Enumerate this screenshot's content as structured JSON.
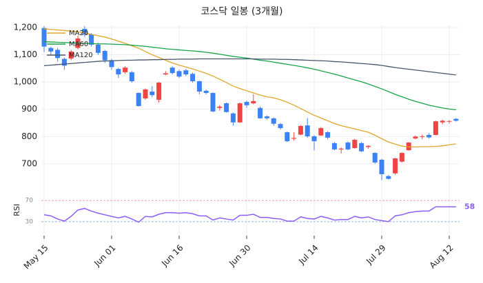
{
  "chart_data": [
    {
      "type": "candlestick",
      "title": "코스닥 일봉 (3개월)",
      "categories": [
        "May 15",
        null,
        null,
        null,
        null,
        null,
        null,
        null,
        null,
        null,
        "Jun 01",
        null,
        null,
        null,
        null,
        null,
        null,
        null,
        null,
        null,
        "Jun 16",
        null,
        null,
        null,
        null,
        null,
        null,
        null,
        null,
        null,
        "Jun 30",
        null,
        null,
        null,
        null,
        null,
        null,
        null,
        null,
        null,
        "Jul 14",
        null,
        null,
        null,
        null,
        null,
        null,
        null,
        null,
        null,
        "Jul 29",
        null,
        null,
        null,
        null,
        null,
        null,
        null,
        null,
        null,
        "Aug 12",
        null
      ],
      "open": [
        1198,
        1125,
        1118,
        1085,
        1086,
        1125,
        1195,
        1175,
        1137,
        1114,
        1080,
        1048,
        1036,
        1036,
        960,
        940,
        965,
        935,
        1028,
        1053,
        1040,
        1043,
        1030,
        1003,
        968,
        960,
        905,
        922,
        885,
        852,
        927,
        922,
        905,
        874,
        867,
        846,
        816,
        792,
        807,
        841,
        801,
        804,
        816,
        776,
        753,
        778,
        758,
        776,
        762,
        740,
        715,
        655,
        665,
        708,
        750,
        793,
        800,
        806,
        806,
        852,
        855,
        865
      ],
      "high": [
        1205,
        1130,
        1125,
        1090,
        1118,
        1170,
        1205,
        1180,
        1145,
        1118,
        1085,
        1052,
        1058,
        1040,
        962,
        976,
        985,
        1000,
        1040,
        1058,
        1045,
        1048,
        1035,
        1005,
        972,
        962,
        915,
        925,
        888,
        925,
        932,
        955,
        910,
        878,
        870,
        850,
        818,
        815,
        842,
        868,
        805,
        835,
        820,
        780,
        760,
        782,
        792,
        780,
        768,
        742,
        718,
        660,
        722,
        742,
        780,
        804,
        808,
        812,
        858,
        862,
        860,
        868
      ],
      "low": [
        1110,
        1100,
        1075,
        1045,
        1080,
        1120,
        1165,
        1130,
        1100,
        1070,
        1045,
        1015,
        1030,
        998,
        910,
        935,
        945,
        925,
        1025,
        1028,
        1015,
        1022,
        998,
        955,
        955,
        890,
        895,
        888,
        840,
        850,
        905,
        918,
        865,
        862,
        840,
        825,
        780,
        785,
        805,
        795,
        750,
        802,
        790,
        750,
        738,
        750,
        755,
        743,
        755,
        700,
        640,
        642,
        660,
        705,
        748,
        790,
        790,
        793,
        804,
        845,
        848,
        855
      ],
      "close": [
        1130,
        1112,
        1088,
        1060,
        1112,
        1160,
        1175,
        1137,
        1107,
        1080,
        1055,
        1028,
        1053,
        1003,
        912,
        973,
        952,
        998,
        1032,
        1033,
        1020,
        1028,
        1003,
        965,
        960,
        892,
        910,
        890,
        852,
        922,
        915,
        930,
        867,
        867,
        847,
        831,
        783,
        795,
        839,
        801,
        783,
        831,
        796,
        753,
        756,
        753,
        788,
        746,
        766,
        705,
        662,
        645,
        720,
        740,
        778,
        800,
        801,
        797,
        856,
        858,
        857,
        858
      ],
      "up_color": "#ef4444",
      "down_color": "#3b82f6",
      "series": [
        {
          "name": "MA20",
          "color": "#e0a526",
          "values": [
            1195,
            1193,
            1191,
            1189,
            1187,
            1184,
            1180,
            1175,
            1170,
            1165,
            1158,
            1150,
            1142,
            1133,
            1124,
            1112,
            1100,
            1090,
            1080,
            1070,
            1062,
            1055,
            1048,
            1040,
            1032,
            1022,
            1010,
            998,
            985,
            976,
            968,
            960,
            952,
            946,
            942,
            935,
            926,
            915,
            903,
            890,
            878,
            868,
            858,
            848,
            840,
            834,
            828,
            822,
            816,
            805,
            792,
            780,
            772,
            765,
            762,
            762,
            763,
            763,
            764,
            766,
            770,
            773
          ]
        },
        {
          "name": "MA60",
          "color": "#16a34a",
          "values": [
            1148,
            1147,
            1146,
            1145,
            1144,
            1143,
            1142,
            1141,
            1140,
            1140,
            1139,
            1138,
            1137,
            1135,
            1133,
            1131,
            1128,
            1125,
            1122,
            1120,
            1118,
            1116,
            1114,
            1112,
            1109,
            1106,
            1102,
            1098,
            1094,
            1091,
            1088,
            1084,
            1080,
            1077,
            1073,
            1069,
            1065,
            1061,
            1057,
            1052,
            1047,
            1041,
            1035,
            1029,
            1022,
            1015,
            1008,
            1001,
            993,
            984,
            975,
            965,
            955,
            946,
            937,
            929,
            922,
            915,
            910,
            905,
            901,
            898
          ]
        },
        {
          "name": "MA120",
          "color": "#475569",
          "values": [
            1060,
            1062,
            1064,
            1066,
            1068,
            1070,
            1072,
            1074,
            1076,
            1077,
            1078,
            1079,
            1080,
            1080,
            1081,
            1081,
            1082,
            1082,
            1083,
            1083,
            1084,
            1084,
            1084,
            1085,
            1085,
            1085,
            1085,
            1085,
            1085,
            1085,
            1085,
            1085,
            1084,
            1084,
            1084,
            1083,
            1083,
            1082,
            1081,
            1080,
            1079,
            1078,
            1077,
            1075,
            1074,
            1072,
            1070,
            1068,
            1066,
            1064,
            1061,
            1057,
            1053,
            1050,
            1047,
            1044,
            1041,
            1038,
            1035,
            1032,
            1029,
            1026
          ]
        }
      ],
      "ylim": [
        619,
        1210
      ],
      "yticks": [
        700,
        800,
        900,
        {
          "value": 1000,
          "label": "1,000"
        },
        {
          "value": 1100,
          "label": "1,100"
        },
        {
          "value": 1200,
          "label": "1,200"
        }
      ],
      "grid": true,
      "legend": "upper left"
    },
    {
      "type": "line",
      "ylabel": "RSI",
      "color": "#8b5cf6",
      "values": [
        43,
        41,
        35,
        31,
        40,
        52,
        55,
        50,
        46,
        43,
        40,
        37,
        40,
        35,
        29,
        40,
        39,
        44,
        47,
        47,
        46,
        47,
        45,
        41,
        41,
        33,
        37,
        35,
        33,
        42,
        42,
        44,
        38,
        38,
        36,
        35,
        31,
        31,
        39,
        36,
        35,
        40,
        37,
        33,
        34,
        34,
        40,
        37,
        39,
        34,
        32,
        30,
        41,
        43,
        47,
        49,
        50,
        50,
        58,
        58,
        58,
        58
      ],
      "ylim": [
        9,
        82
      ],
      "yticks": [
        30,
        70
      ],
      "ytick_colors": [
        "#93b4e0",
        "#f0a0a0"
      ]
    }
  ]
}
